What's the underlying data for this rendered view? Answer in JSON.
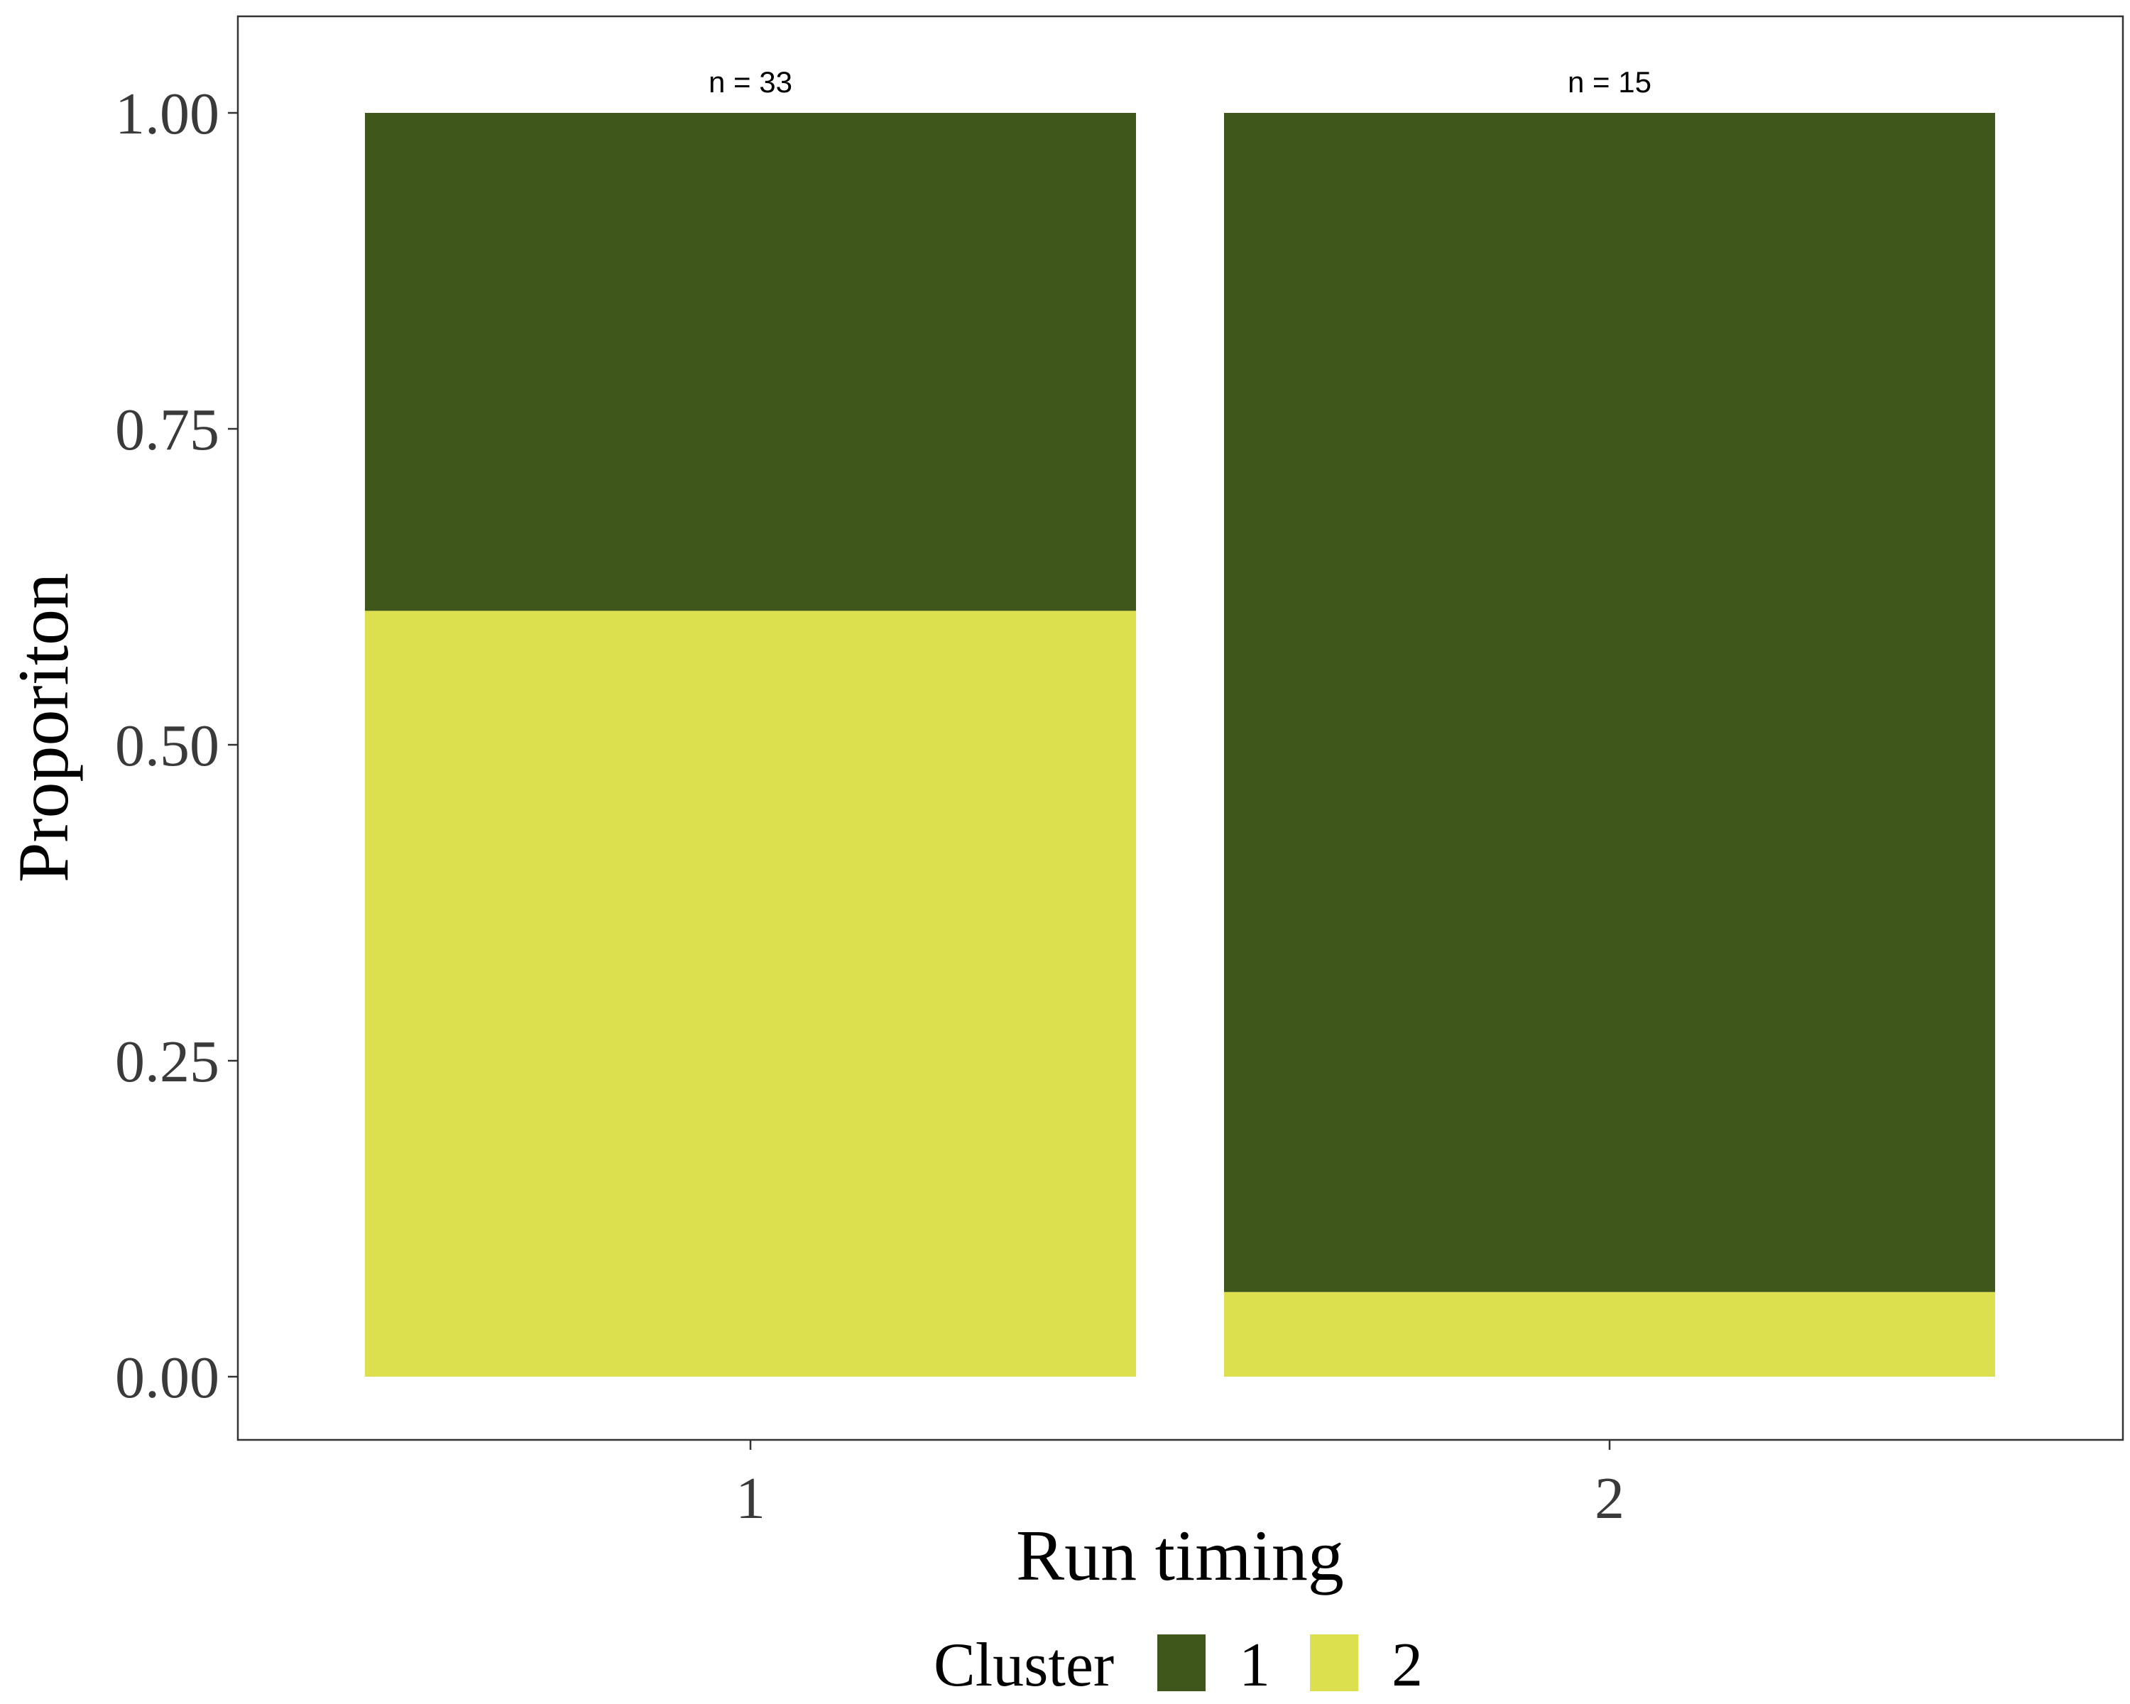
{
  "chart_data": {
    "type": "bar",
    "stacked": true,
    "title": "",
    "xlabel": "Run timing",
    "ylabel": "Proporiton",
    "categories": [
      "1",
      "2"
    ],
    "annotations": [
      "n = 33",
      "n = 15"
    ],
    "series": [
      {
        "name": "1",
        "color": "#40571c",
        "values": [
          0.394,
          0.933
        ]
      },
      {
        "name": "2",
        "color": "#dce04e",
        "values": [
          0.606,
          0.067
        ]
      }
    ],
    "ylim": [
      0,
      1
    ],
    "yticks": [
      "0.00",
      "0.25",
      "0.50",
      "0.75",
      "1.00"
    ],
    "ytick_values": [
      0,
      0.25,
      0.5,
      0.75,
      1
    ],
    "grid": false,
    "legend": {
      "title": "Cluster",
      "position": "bottom"
    }
  }
}
